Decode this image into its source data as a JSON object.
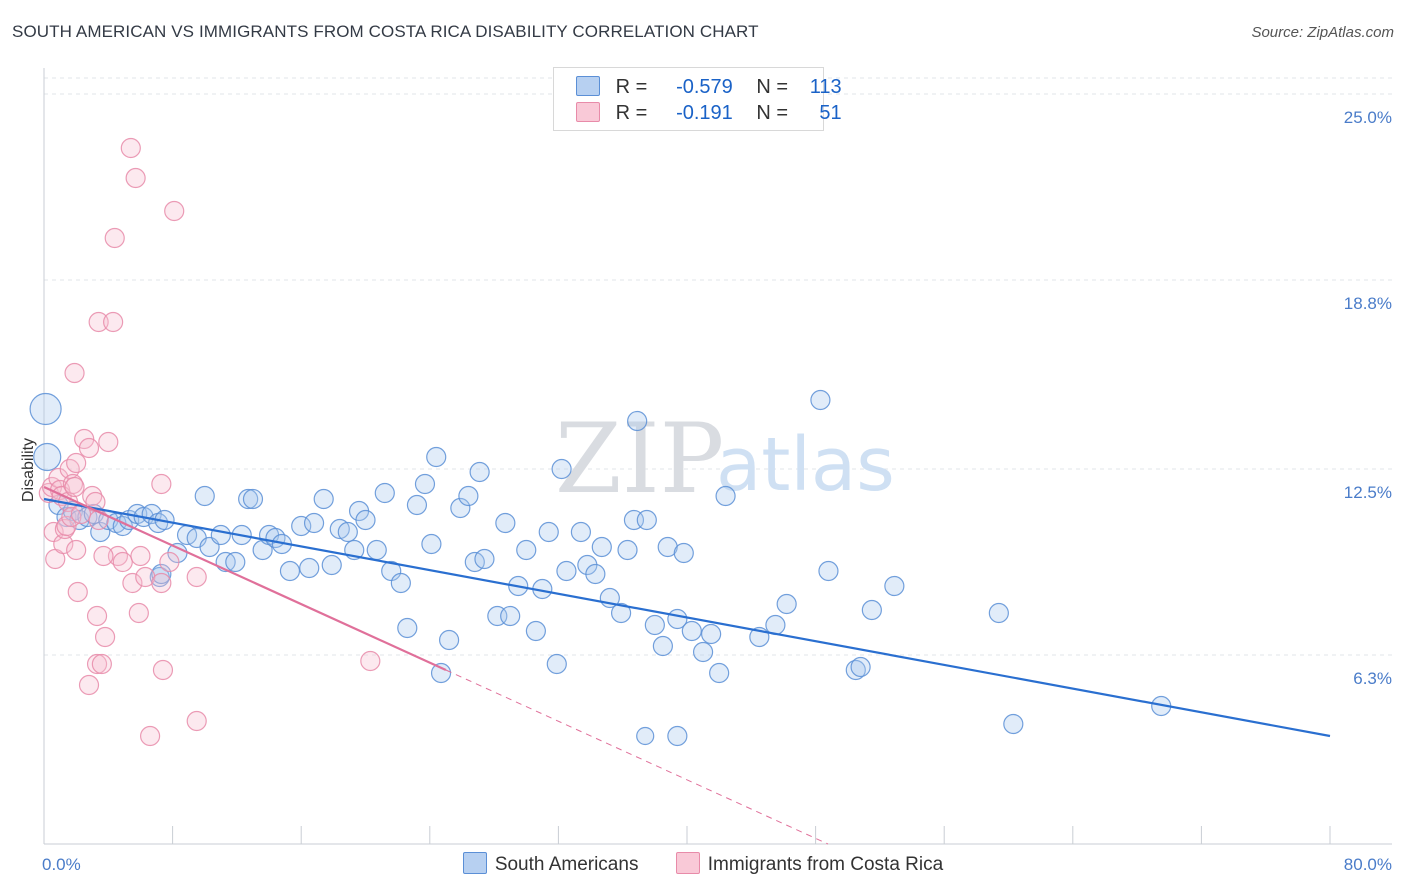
{
  "title": "SOUTH AMERICAN VS IMMIGRANTS FROM COSTA RICA DISABILITY CORRELATION CHART",
  "source": "Source: ZipAtlas.com",
  "watermark": {
    "zip": "ZIP",
    "atlas": "atlas"
  },
  "legend": {
    "rows": [
      {
        "r_label": "R =",
        "r_value": "-0.579",
        "n_label": "N =",
        "n_value": "113"
      },
      {
        "r_label": "R =",
        "r_value": "-0.191",
        "n_label": "N =",
        "n_value": "51"
      }
    ]
  },
  "colors": {
    "blue_stroke": "#5b8fd6",
    "blue_fill": "#a9c8ef",
    "blue_line": "#2a6fd0",
    "pink_stroke": "#e88ba9",
    "pink_fill": "#f7bfd0",
    "pink_line": "#e0709a",
    "tick_text": "#4a7cc9",
    "grid": "#e2e6ea"
  },
  "chart_data": {
    "type": "scatter",
    "title": "SOUTH AMERICAN VS IMMIGRANTS FROM COSTA RICA DISABILITY CORRELATION CHART",
    "xlabel": "",
    "ylabel": "Disability",
    "xlim": [
      0,
      80
    ],
    "ylim": [
      0,
      26.2
    ],
    "x_tick_labels": [
      "0.0%",
      "80.0%"
    ],
    "y_ticks": [
      {
        "value": 6.3,
        "label": "6.3%"
      },
      {
        "value": 12.5,
        "label": "12.5%"
      },
      {
        "value": 18.8,
        "label": "18.8%"
      },
      {
        "value": 25.0,
        "label": "25.0%"
      }
    ],
    "grid": "horizontal dashed",
    "legend_position": "top-center",
    "series": [
      {
        "name": "South Americans",
        "color": "#5b8fd6",
        "trend": {
          "x0": 0,
          "y0": 11.5,
          "x1": 80,
          "y1": 3.6
        },
        "points": [
          [
            0.1,
            14.5,
            14
          ],
          [
            0.2,
            12.9,
            12
          ],
          [
            0.9,
            11.3,
            8
          ],
          [
            1.4,
            10.9,
            8
          ],
          [
            1.8,
            11.1,
            8
          ],
          [
            2.2,
            10.8,
            8
          ],
          [
            2.7,
            10.9,
            8
          ],
          [
            3.1,
            11.0,
            8
          ],
          [
            3.5,
            10.4,
            8
          ],
          [
            4.0,
            10.8,
            8
          ],
          [
            4.5,
            10.7,
            8
          ],
          [
            4.9,
            10.6,
            8
          ],
          [
            5.3,
            10.8,
            8
          ],
          [
            5.8,
            11.0,
            8
          ],
          [
            6.2,
            10.9,
            8
          ],
          [
            6.7,
            11.0,
            8
          ],
          [
            7.1,
            10.7,
            8
          ],
          [
            7.5,
            10.8,
            8
          ],
          [
            7.2,
            8.9,
            8
          ],
          [
            7.3,
            9.0,
            8
          ],
          [
            8.3,
            9.7,
            8
          ],
          [
            8.9,
            10.3,
            8
          ],
          [
            9.5,
            10.2,
            8
          ],
          [
            10.0,
            11.6,
            8
          ],
          [
            10.3,
            9.9,
            8
          ],
          [
            11.0,
            10.3,
            8
          ],
          [
            11.3,
            9.4,
            8
          ],
          [
            11.9,
            9.4,
            8
          ],
          [
            12.3,
            10.3,
            8
          ],
          [
            12.7,
            11.5,
            8
          ],
          [
            13.0,
            11.5,
            8
          ],
          [
            13.6,
            9.8,
            8
          ],
          [
            14.0,
            10.3,
            8
          ],
          [
            14.4,
            10.2,
            8
          ],
          [
            14.8,
            10.0,
            8
          ],
          [
            15.3,
            9.1,
            8
          ],
          [
            16.0,
            10.6,
            8
          ],
          [
            16.5,
            9.2,
            8
          ],
          [
            16.8,
            10.7,
            8
          ],
          [
            17.4,
            11.5,
            8
          ],
          [
            17.9,
            9.3,
            8
          ],
          [
            18.4,
            10.5,
            8
          ],
          [
            18.9,
            10.4,
            8
          ],
          [
            19.3,
            9.8,
            8
          ],
          [
            19.6,
            11.1,
            8
          ],
          [
            20.0,
            10.8,
            8
          ],
          [
            20.7,
            9.8,
            8
          ],
          [
            21.2,
            11.7,
            8
          ],
          [
            21.6,
            9.1,
            8
          ],
          [
            22.2,
            8.7,
            8
          ],
          [
            22.6,
            7.2,
            8
          ],
          [
            23.2,
            11.3,
            8
          ],
          [
            23.7,
            12.0,
            8
          ],
          [
            24.1,
            10.0,
            8
          ],
          [
            24.4,
            12.9,
            8
          ],
          [
            24.7,
            5.7,
            8
          ],
          [
            25.2,
            6.8,
            8
          ],
          [
            25.9,
            11.2,
            8
          ],
          [
            26.4,
            11.6,
            8
          ],
          [
            26.8,
            9.4,
            8
          ],
          [
            27.1,
            12.4,
            8
          ],
          [
            27.4,
            9.5,
            8
          ],
          [
            28.2,
            7.6,
            8
          ],
          [
            28.7,
            10.7,
            8
          ],
          [
            29.0,
            7.6,
            8
          ],
          [
            29.5,
            8.6,
            8
          ],
          [
            30.0,
            9.8,
            8
          ],
          [
            30.6,
            7.1,
            8
          ],
          [
            31.0,
            8.5,
            8
          ],
          [
            31.4,
            10.4,
            8
          ],
          [
            31.9,
            6.0,
            8
          ],
          [
            32.2,
            12.5,
            8
          ],
          [
            32.5,
            9.1,
            8
          ],
          [
            33.4,
            10.4,
            8
          ],
          [
            33.8,
            9.3,
            8
          ],
          [
            34.3,
            9.0,
            8
          ],
          [
            34.7,
            9.9,
            8
          ],
          [
            35.2,
            8.2,
            8
          ],
          [
            35.9,
            7.7,
            8
          ],
          [
            36.3,
            9.8,
            8
          ],
          [
            36.7,
            10.8,
            8
          ],
          [
            36.9,
            14.1,
            8
          ],
          [
            37.5,
            10.8,
            8
          ],
          [
            38.0,
            7.3,
            8
          ],
          [
            38.5,
            6.6,
            8
          ],
          [
            38.8,
            9.9,
            8
          ],
          [
            39.4,
            7.5,
            8
          ],
          [
            39.8,
            9.7,
            8
          ],
          [
            40.3,
            7.1,
            8
          ],
          [
            41.0,
            6.4,
            8
          ],
          [
            41.5,
            7.0,
            8
          ],
          [
            42.0,
            5.7,
            8
          ],
          [
            42.4,
            11.6,
            8
          ],
          [
            44.5,
            6.9,
            8
          ],
          [
            45.5,
            7.3,
            8
          ],
          [
            46.2,
            8.0,
            8
          ],
          [
            48.3,
            14.8,
            8
          ],
          [
            48.8,
            9.1,
            8
          ],
          [
            50.5,
            5.8,
            8
          ],
          [
            50.8,
            5.9,
            8
          ],
          [
            51.5,
            7.8,
            8
          ],
          [
            52.9,
            8.6,
            8
          ],
          [
            59.4,
            7.7,
            8
          ],
          [
            60.3,
            4.0,
            8
          ],
          [
            69.5,
            4.6,
            8
          ],
          [
            39.4,
            3.6,
            8
          ],
          [
            37.4,
            3.6,
            7
          ]
        ]
      },
      {
        "name": "Immigrants from Costa Rica",
        "color": "#e88ba9",
        "trend": {
          "x0": 0,
          "y0": 11.9,
          "x1": 25,
          "y1": 5.8,
          "dash_to_x": 80
        },
        "points": [
          [
            0.3,
            11.7,
            8
          ],
          [
            0.5,
            11.9,
            8
          ],
          [
            0.6,
            10.4,
            8
          ],
          [
            0.7,
            9.5,
            8
          ],
          [
            0.9,
            12.2,
            8
          ],
          [
            1.0,
            11.8,
            8
          ],
          [
            1.1,
            11.6,
            8
          ],
          [
            1.2,
            10.0,
            8
          ],
          [
            1.3,
            10.5,
            8
          ],
          [
            1.4,
            10.6,
            8
          ],
          [
            1.5,
            11.4,
            8
          ],
          [
            1.6,
            12.5,
            8
          ],
          [
            1.7,
            10.9,
            8
          ],
          [
            1.8,
            12.0,
            8
          ],
          [
            1.9,
            11.9,
            8
          ],
          [
            2.0,
            12.7,
            8
          ],
          [
            1.9,
            15.7,
            8
          ],
          [
            2.1,
            8.4,
            8
          ],
          [
            2.3,
            11.0,
            8
          ],
          [
            2.5,
            13.5,
            8
          ],
          [
            2.8,
            13.2,
            8
          ],
          [
            2.0,
            9.8,
            8
          ],
          [
            3.0,
            11.6,
            8
          ],
          [
            3.2,
            11.4,
            8
          ],
          [
            3.4,
            10.8,
            8
          ],
          [
            2.8,
            5.3,
            8
          ],
          [
            3.3,
            6.0,
            8
          ],
          [
            3.6,
            6.0,
            8
          ],
          [
            3.3,
            7.6,
            8
          ],
          [
            3.8,
            6.9,
            8
          ],
          [
            4.0,
            13.4,
            8
          ],
          [
            4.6,
            9.6,
            8
          ],
          [
            4.9,
            9.4,
            8
          ],
          [
            3.7,
            9.6,
            8
          ],
          [
            3.4,
            17.4,
            8
          ],
          [
            4.3,
            17.4,
            8
          ],
          [
            4.4,
            20.2,
            8
          ],
          [
            5.4,
            23.2,
            8
          ],
          [
            5.7,
            22.2,
            8
          ],
          [
            5.5,
            8.7,
            8
          ],
          [
            5.9,
            7.7,
            8
          ],
          [
            6.0,
            9.6,
            8
          ],
          [
            6.3,
            8.9,
            8
          ],
          [
            7.3,
            8.7,
            8
          ],
          [
            7.4,
            5.8,
            8
          ],
          [
            7.8,
            9.4,
            8
          ],
          [
            7.3,
            12.0,
            8
          ],
          [
            6.6,
            3.6,
            8
          ],
          [
            8.1,
            21.1,
            8
          ],
          [
            9.5,
            8.9,
            8
          ],
          [
            9.5,
            4.1,
            8
          ],
          [
            20.3,
            6.1,
            8
          ]
        ]
      }
    ]
  }
}
